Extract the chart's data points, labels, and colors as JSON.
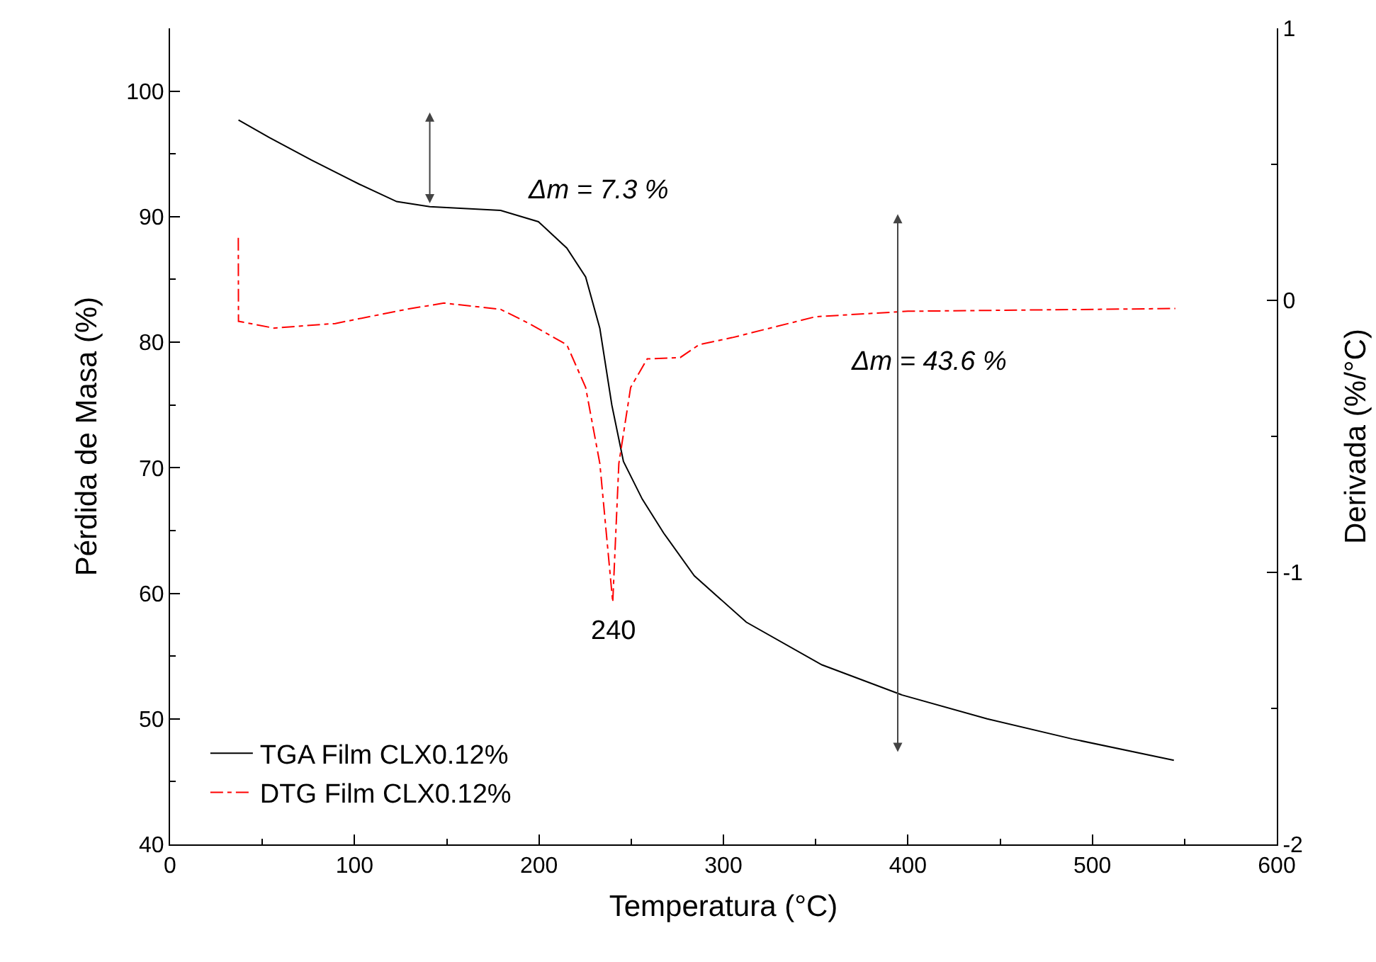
{
  "chart_data": {
    "type": "line",
    "xlabel": "Temperatura (°C)",
    "ylabel": "Pérdida de Masa (%)",
    "y2label": "Derivada (%/°C)",
    "xlim": [
      0,
      600
    ],
    "xticks": [
      0,
      100,
      200,
      300,
      400,
      500,
      600
    ],
    "ylim": [
      40,
      105
    ],
    "yticks": [
      40,
      50,
      60,
      70,
      80,
      90,
      100
    ],
    "y2lim": [
      -2,
      1
    ],
    "y2ticks": [
      -2,
      -1,
      0,
      1
    ],
    "legend": "bottom left",
    "grid": false,
    "series": [
      {
        "name": "TGA Film CLX0.12%",
        "color": "#000000",
        "line_style": "solid",
        "x": [
          37.1,
          53.8,
          76.8,
          102.4,
          122.9,
          140.8,
          179.2,
          199.7,
          215.1,
          225.3,
          233,
          239.5,
          245.8,
          256,
          267.6,
          284.2,
          312.4,
          353.4,
          396.9,
          443,
          489.1,
          544.2
        ],
        "values": [
          97.7,
          96.3,
          94.5,
          92.6,
          91.2,
          90.8,
          90.5,
          89.6,
          87.5,
          85.2,
          81.1,
          75.0,
          70.5,
          67.5,
          64.8,
          61.4,
          57.7,
          54.3,
          51.9,
          50.0,
          48.4,
          46.7
        ]
      },
      {
        "name": "DTG Film CLX0.12%",
        "color": "#ff0000",
        "line_style": "dashed",
        "axis": "y2",
        "x": [
          37,
          37.1,
          56.3,
          89.6,
          128,
          148.5,
          179.2,
          194.6,
          215.1,
          225.3,
          233,
          240,
          243.3,
          249.7,
          258.7,
          276.6,
          286.8,
          304.7,
          350,
          400,
          545
        ],
        "values": [
          0.23,
          -0.077,
          -0.102,
          -0.085,
          -0.033,
          -0.01,
          -0.033,
          -0.085,
          -0.163,
          -0.32,
          -0.6,
          -1.11,
          -0.6,
          -0.32,
          -0.215,
          -0.21,
          -0.163,
          -0.137,
          -0.06,
          -0.04,
          -0.03
        ]
      }
    ],
    "annotations": [
      "Δm = 7.3 %",
      "Δm = 43.6 %",
      "240"
    ]
  }
}
